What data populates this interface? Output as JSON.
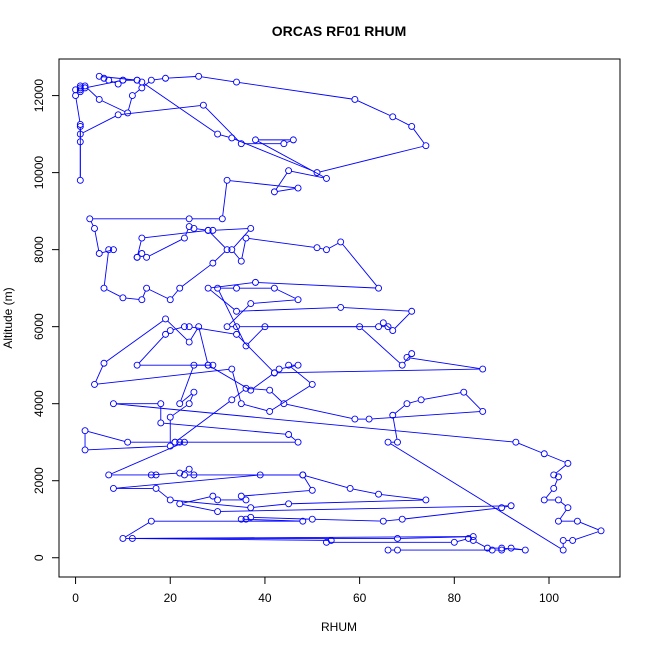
{
  "chart_data": {
    "type": "line",
    "title": "ORCAS RF01 RHUM",
    "xlabel": "RHUM",
    "ylabel": "Altitude (m)",
    "xlim": [
      -3.5,
      115
    ],
    "ylim": [
      -500,
      12950
    ],
    "xticks": [
      0,
      20,
      40,
      60,
      80,
      100
    ],
    "yticks": [
      0,
      2000,
      4000,
      6000,
      8000,
      10000,
      12000
    ],
    "grid": false,
    "markers": "open-circle",
    "color": "#0000ff",
    "points": [
      [
        66,
        200
      ],
      [
        68,
        200
      ],
      [
        88,
        200
      ],
      [
        90,
        200
      ],
      [
        92,
        250
      ],
      [
        95,
        200
      ],
      [
        90,
        250
      ],
      [
        87,
        250
      ],
      [
        84,
        450
      ],
      [
        83,
        500
      ],
      [
        80,
        400
      ],
      [
        53,
        400
      ],
      [
        54,
        450
      ],
      [
        12,
        500
      ],
      [
        68,
        500
      ],
      [
        84,
        550
      ],
      [
        10,
        500
      ],
      [
        16,
        950
      ],
      [
        48,
        950
      ],
      [
        35,
        1000
      ],
      [
        36,
        1000
      ],
      [
        37,
        1050
      ],
      [
        50,
        1000
      ],
      [
        65,
        950
      ],
      [
        69,
        1000
      ],
      [
        90,
        1300
      ],
      [
        92,
        1350
      ],
      [
        30,
        1200
      ],
      [
        22,
        1400
      ],
      [
        29,
        1600
      ],
      [
        30,
        1500
      ],
      [
        36,
        1500
      ],
      [
        35,
        1600
      ],
      [
        50,
        1750
      ],
      [
        48,
        2150
      ],
      [
        39,
        2150
      ],
      [
        8,
        1800
      ],
      [
        17,
        1800
      ],
      [
        20,
        1500
      ],
      [
        37,
        1300
      ],
      [
        45,
        1400
      ],
      [
        74,
        1500
      ],
      [
        64,
        1650
      ],
      [
        58,
        1800
      ],
      [
        48,
        2150
      ],
      [
        23,
        2150
      ],
      [
        25,
        2150
      ],
      [
        24,
        2300
      ],
      [
        22,
        2200
      ],
      [
        16,
        2150
      ],
      [
        17,
        2150
      ],
      [
        7,
        2150
      ],
      [
        23,
        3000
      ],
      [
        22,
        3000
      ],
      [
        21,
        3000
      ],
      [
        47,
        3000
      ],
      [
        45,
        3200
      ],
      [
        18,
        3500
      ],
      [
        18,
        4000
      ],
      [
        8,
        4000
      ],
      [
        93,
        3000
      ],
      [
        99,
        2700
      ],
      [
        104,
        2450
      ],
      [
        101,
        2150
      ],
      [
        102,
        2100
      ],
      [
        101,
        1800
      ],
      [
        99,
        1500
      ],
      [
        102,
        1500
      ],
      [
        104,
        1300
      ],
      [
        102,
        950
      ],
      [
        106,
        950
      ],
      [
        111,
        700
      ],
      [
        105,
        450
      ],
      [
        103,
        450
      ],
      [
        103,
        200
      ],
      [
        66,
        3000
      ],
      [
        68,
        3000
      ],
      [
        67,
        3700
      ],
      [
        70,
        4000
      ],
      [
        73,
        4100
      ],
      [
        82,
        4300
      ],
      [
        86,
        3800
      ],
      [
        62,
        3600
      ],
      [
        59,
        3600
      ],
      [
        44,
        4000
      ],
      [
        41,
        4350
      ],
      [
        36,
        4400
      ],
      [
        33,
        4100
      ],
      [
        21,
        3000
      ],
      [
        11,
        3000
      ],
      [
        2,
        3300
      ],
      [
        2,
        2800
      ],
      [
        20,
        2900
      ],
      [
        20,
        3650
      ],
      [
        24,
        4000
      ],
      [
        25,
        4300
      ],
      [
        22,
        4000
      ],
      [
        25,
        5000
      ],
      [
        29,
        5000
      ],
      [
        28,
        5000
      ],
      [
        37,
        4350
      ],
      [
        42,
        4800
      ],
      [
        43,
        4900
      ],
      [
        47,
        5000
      ],
      [
        45,
        5000
      ],
      [
        50,
        4500
      ],
      [
        41,
        3800
      ],
      [
        35,
        4000
      ],
      [
        33,
        4900
      ],
      [
        4,
        4500
      ],
      [
        6,
        5050
      ],
      [
        19,
        6200
      ],
      [
        24,
        5600
      ],
      [
        26,
        6000
      ],
      [
        28,
        5000
      ],
      [
        13,
        5000
      ],
      [
        19,
        5800
      ],
      [
        20,
        5900
      ],
      [
        23,
        6000
      ],
      [
        24,
        6000
      ],
      [
        34,
        5800
      ],
      [
        42,
        4800
      ],
      [
        86,
        4900
      ],
      [
        70,
        5200
      ],
      [
        71,
        5300
      ],
      [
        69,
        5000
      ],
      [
        60,
        6000
      ],
      [
        34,
        6000
      ],
      [
        32,
        6000
      ],
      [
        37,
        6600
      ],
      [
        47,
        6700
      ],
      [
        42,
        7000
      ],
      [
        34,
        7000
      ],
      [
        30,
        7000
      ],
      [
        36,
        5500
      ],
      [
        40,
        6000
      ],
      [
        64,
        6000
      ],
      [
        66,
        6000
      ],
      [
        65,
        6100
      ],
      [
        67,
        5900
      ],
      [
        71,
        6400
      ],
      [
        56,
        6500
      ],
      [
        34,
        6400
      ],
      [
        28,
        7000
      ],
      [
        38,
        7150
      ],
      [
        64,
        7000
      ],
      [
        56,
        8200
      ],
      [
        53,
        8000
      ],
      [
        51,
        8050
      ],
      [
        36,
        8300
      ],
      [
        35,
        7700
      ],
      [
        33,
        8000
      ],
      [
        37,
        8550
      ],
      [
        29,
        8500
      ],
      [
        28,
        8500
      ],
      [
        25,
        8550
      ],
      [
        24,
        8600
      ],
      [
        23,
        8300
      ],
      [
        15,
        7800
      ],
      [
        14,
        7900
      ],
      [
        13,
        7800
      ],
      [
        13,
        7800
      ],
      [
        14,
        8300
      ],
      [
        28,
        8500
      ],
      [
        32,
        8000
      ],
      [
        29,
        7650
      ],
      [
        22,
        7000
      ],
      [
        20,
        6700
      ],
      [
        15,
        7000
      ],
      [
        14,
        6700
      ],
      [
        10,
        6750
      ],
      [
        6,
        7000
      ],
      [
        7,
        8000
      ],
      [
        8,
        8000
      ],
      [
        5,
        7900
      ],
      [
        4,
        8550
      ],
      [
        3,
        8800
      ],
      [
        24,
        8800
      ],
      [
        31,
        8800
      ],
      [
        32,
        9800
      ],
      [
        47,
        9600
      ],
      [
        42,
        9500
      ],
      [
        45,
        10050
      ],
      [
        53,
        9850
      ],
      [
        38,
        10850
      ],
      [
        46,
        10850
      ],
      [
        44,
        10750
      ],
      [
        35,
        10750
      ],
      [
        27,
        11750
      ],
      [
        9,
        11500
      ],
      [
        1,
        11000
      ],
      [
        1,
        11200
      ],
      [
        1,
        9800
      ],
      [
        1,
        10800
      ],
      [
        1,
        11250
      ],
      [
        0,
        12000
      ],
      [
        0,
        12150
      ],
      [
        1,
        12200
      ],
      [
        1,
        12250
      ],
      [
        2,
        12250
      ],
      [
        5,
        11900
      ],
      [
        11,
        11550
      ],
      [
        12,
        12000
      ],
      [
        14,
        12200
      ],
      [
        16,
        12400
      ],
      [
        19,
        12450
      ],
      [
        26,
        12500
      ],
      [
        34,
        12350
      ],
      [
        59,
        11900
      ],
      [
        67,
        11450
      ],
      [
        71,
        11200
      ],
      [
        74,
        10700
      ],
      [
        51,
        10000
      ],
      [
        33,
        10900
      ],
      [
        30,
        11000
      ],
      [
        14,
        12350
      ],
      [
        13,
        12400
      ],
      [
        10,
        12400
      ],
      [
        9,
        12300
      ],
      [
        7,
        12400
      ],
      [
        6,
        12450
      ],
      [
        5,
        12500
      ],
      [
        13,
        12400
      ],
      [
        10,
        12400
      ],
      [
        2,
        12200
      ],
      [
        1,
        12150
      ],
      [
        1,
        12100
      ]
    ]
  }
}
